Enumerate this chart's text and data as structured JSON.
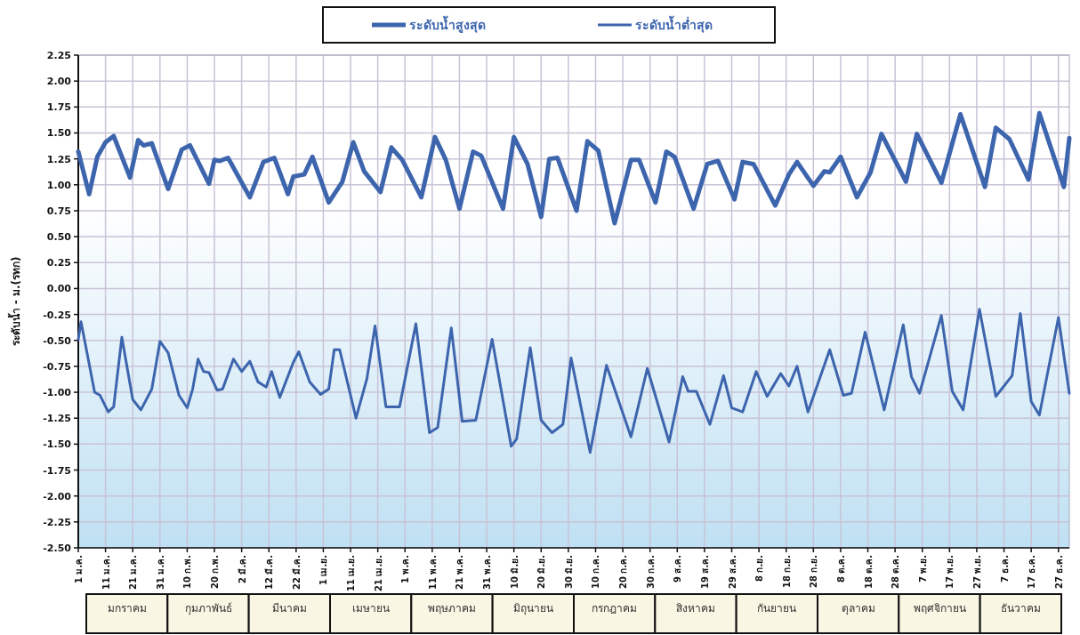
{
  "chart_data": {
    "type": "line",
    "ylabel": "ระดับน้ำ - ม.(รทก)",
    "xlim": [
      "--01-01",
      "--12-31"
    ],
    "ylim": [
      -2.5,
      2.25
    ],
    "yticks": [
      2.25,
      {
        "value": 2,
        "label": "2.00"
      },
      1.75,
      {
        "value": 1.5,
        "label": "1.50"
      },
      1.25,
      {
        "value": 1,
        "label": "1.00"
      },
      0.75,
      {
        "value": 0.5,
        "label": "0.50"
      },
      0.25,
      {
        "value": 0,
        "label": "0.00"
      },
      -0.25,
      {
        "value": -0.5,
        "label": "-0.50"
      },
      -0.75,
      {
        "value": -1,
        "label": "-1.00"
      },
      -1.25,
      {
        "value": -1.5,
        "label": "-1.50"
      },
      -1.75,
      {
        "value": -2,
        "label": "-2.00"
      },
      -2.25,
      {
        "value": -2.5,
        "label": "-2.50"
      }
    ],
    "xticks": [
      {
        "value": "--01-01",
        "label": "1 ม.ค."
      },
      {
        "value": "--01-11",
        "label": "11 ม.ค."
      },
      {
        "value": "--01-21",
        "label": "21 ม.ค."
      },
      {
        "value": "--01-31",
        "label": "31 ม.ค."
      },
      {
        "value": "--02-10",
        "label": "10 ก.พ."
      },
      {
        "value": "--02-20",
        "label": "20 ก.พ."
      },
      {
        "value": "--03-02",
        "label": "2 มี.ค."
      },
      {
        "value": "--03-12",
        "label": "12 มี.ค."
      },
      {
        "value": "--03-22",
        "label": "22 มี.ค."
      },
      {
        "value": "--04-01",
        "label": "1 เม.ย."
      },
      {
        "value": "--04-11",
        "label": "11 เม.ย."
      },
      {
        "value": "--04-21",
        "label": "21 เม.ย."
      },
      {
        "value": "--05-01",
        "label": "1 พ.ค."
      },
      {
        "value": "--05-11",
        "label": "11 พ.ค."
      },
      {
        "value": "--05-21",
        "label": "21 พ.ค."
      },
      {
        "value": "--05-31",
        "label": "31 พ.ค."
      },
      {
        "value": "--06-10",
        "label": "10 มิ.ย."
      },
      {
        "value": "--06-20",
        "label": "20 มิ.ย."
      },
      {
        "value": "--06-30",
        "label": "30 มิ.ย."
      },
      {
        "value": "--07-10",
        "label": "10 ก.ค."
      },
      {
        "value": "--07-20",
        "label": "20 ก.ค."
      },
      {
        "value": "--07-30",
        "label": "30 ก.ค."
      },
      {
        "value": "--08-09",
        "label": "9 ส.ค."
      },
      {
        "value": "--08-19",
        "label": "19 ส.ค."
      },
      {
        "value": "--08-29",
        "label": "29 ส.ค."
      },
      {
        "value": "--09-08",
        "label": "8 ก.ย."
      },
      {
        "value": "--09-18",
        "label": "18 ก.ย."
      },
      {
        "value": "--09-28",
        "label": "28 ก.ย."
      },
      {
        "value": "--10-08",
        "label": "8 ต.ค."
      },
      {
        "value": "--10-18",
        "label": "18 ต.ค."
      },
      {
        "value": "--10-28",
        "label": "28 ต.ค."
      },
      {
        "value": "--11-07",
        "label": "7 พ.ย."
      },
      {
        "value": "--11-17",
        "label": "17 พ.ย."
      },
      {
        "value": "--11-27",
        "label": "27 พ.ย."
      },
      {
        "value": "--12-07",
        "label": "7 ธ.ค."
      },
      {
        "value": "--12-17",
        "label": "17 ธ.ค."
      },
      {
        "value": "--12-27",
        "label": "27 ธ.ค."
      }
    ],
    "grid": true,
    "legend": "top",
    "annotations": [
      "มกราคม",
      "กุมภาพันธ์",
      "มีนาคม",
      "เมษายน",
      "พฤษภาคม",
      "มิถุนายน",
      "กรกฎาคม",
      "สิงหาคม",
      "กันยายน",
      "ตุลาคม",
      "พฤศจิกายน",
      "ธันวาคม"
    ],
    "series": [
      {
        "name": "ระดับน้ำสูงสุด",
        "color": "#3d65ad",
        "x": [
          "--01-01",
          "--01-05",
          "--01-08",
          "--01-11",
          "--01-14",
          "--01-20",
          "--01-23",
          "--01-25",
          "--01-28",
          "--02-03",
          "--02-08",
          "--02-11",
          "--02-18",
          "--02-20",
          "--02-22",
          "--02-25",
          "--03-05",
          "--03-10",
          "--03-14",
          "--03-19",
          "--03-21",
          "--03-25",
          "--03-28",
          "--04-03",
          "--04-08",
          "--04-12",
          "--04-16",
          "--04-22",
          "--04-26",
          "--04-30",
          "--05-07",
          "--05-12",
          "--05-16",
          "--05-21",
          "--05-26",
          "--05-29",
          "--06-06",
          "--06-10",
          "--06-15",
          "--06-20",
          "--06-23",
          "--06-26",
          "--07-03",
          "--07-07",
          "--07-11",
          "--07-17",
          "--07-23",
          "--07-26",
          "--08-01",
          "--08-05",
          "--08-08",
          "--08-15",
          "--08-20",
          "--08-24",
          "--08-30",
          "--09-02",
          "--09-06",
          "--09-14",
          "--09-19",
          "--09-22",
          "--09-28",
          "--10-02",
          "--10-04",
          "--10-08",
          "--10-14",
          "--10-19",
          "--10-23",
          "--11-01",
          "--11-05",
          "--11-14",
          "--11-21",
          "--11-30",
          "--12-04",
          "--12-09",
          "--12-16",
          "--12-20",
          "--12-29",
          "--12-31"
        ],
        "values": [
          1.32,
          0.91,
          1.27,
          1.41,
          1.47,
          1.07,
          1.43,
          1.38,
          1.4,
          0.96,
          1.34,
          1.38,
          1.01,
          1.24,
          1.23,
          1.26,
          0.88,
          1.22,
          1.26,
          0.91,
          1.08,
          1.1,
          1.27,
          0.83,
          1.03,
          1.41,
          1.13,
          0.93,
          1.36,
          1.24,
          0.88,
          1.46,
          1.24,
          0.77,
          1.32,
          1.28,
          0.77,
          1.46,
          1.2,
          0.69,
          1.25,
          1.26,
          0.75,
          1.42,
          1.33,
          0.63,
          1.24,
          1.24,
          0.83,
          1.32,
          1.27,
          0.77,
          1.2,
          1.23,
          0.86,
          1.22,
          1.2,
          0.8,
          1.1,
          1.22,
          0.99,
          1.13,
          1.12,
          1.27,
          0.88,
          1.12,
          1.49,
          1.03,
          1.49,
          1.02,
          1.68,
          0.98,
          1.55,
          1.44,
          1.05,
          1.69,
          0.98,
          1.45
        ]
      },
      {
        "name": "ระดับน้ำต่ำสุด",
        "color": "#3d65ad",
        "x": [
          "--01-01",
          "--01-02",
          "--01-07",
          "--01-09",
          "--01-12",
          "--01-14",
          "--01-17",
          "--01-21",
          "--01-24",
          "--01-28",
          "--01-31",
          "--02-03",
          "--02-07",
          "--02-10",
          "--02-12",
          "--02-14",
          "--02-16",
          "--02-18",
          "--02-21",
          "--02-23",
          "--02-27",
          "--03-02",
          "--03-05",
          "--03-08",
          "--03-11",
          "--03-13",
          "--03-16",
          "--03-21",
          "--03-23",
          "--03-27",
          "--03-31",
          "--04-03",
          "--04-05",
          "--04-07",
          "--04-13",
          "--04-17",
          "--04-20",
          "--04-24",
          "--04-29",
          "--05-05",
          "--05-10",
          "--05-13",
          "--05-18",
          "--05-22",
          "--05-27",
          "--06-02",
          "--06-09",
          "--06-11",
          "--06-16",
          "--06-20",
          "--06-24",
          "--06-28",
          "--07-01",
          "--07-08",
          "--07-14",
          "--07-23",
          "--07-29",
          "--08-06",
          "--08-11",
          "--08-13",
          "--08-16",
          "--08-21",
          "--08-26",
          "--08-29",
          "--09-02",
          "--09-07",
          "--09-11",
          "--09-16",
          "--09-19",
          "--09-22",
          "--09-26",
          "--10-04",
          "--10-09",
          "--10-12",
          "--10-17",
          "--10-24",
          "--10-31",
          "--11-03",
          "--11-06",
          "--11-14",
          "--11-18",
          "--11-22",
          "--11-28",
          "--12-04",
          "--12-10",
          "--12-13",
          "--12-17",
          "--12-20",
          "--12-27",
          "--12-31"
        ],
        "values": [
          -0.49,
          -0.32,
          -1.0,
          -1.03,
          -1.19,
          -1.14,
          -0.47,
          -1.07,
          -1.17,
          -0.97,
          -0.51,
          -0.62,
          -1.03,
          -1.15,
          -0.97,
          -0.68,
          -0.8,
          -0.81,
          -0.98,
          -0.97,
          -0.68,
          -0.8,
          -0.7,
          -0.9,
          -0.95,
          -0.8,
          -1.05,
          -0.71,
          -0.61,
          -0.9,
          -1.02,
          -0.97,
          -0.59,
          -0.59,
          -1.25,
          -0.87,
          -0.36,
          -1.14,
          -1.14,
          -0.34,
          -1.39,
          -1.34,
          -0.38,
          -1.28,
          -1.27,
          -0.49,
          -1.52,
          -1.45,
          -0.57,
          -1.27,
          -1.39,
          -1.31,
          -0.67,
          -1.58,
          -0.74,
          -1.43,
          -0.77,
          -1.48,
          -0.85,
          -0.99,
          -0.99,
          -1.31,
          -0.84,
          -1.15,
          -1.19,
          -0.8,
          -1.04,
          -0.82,
          -0.94,
          -0.75,
          -1.19,
          -0.59,
          -1.03,
          -1.01,
          -0.42,
          -1.17,
          -0.35,
          -0.85,
          -1.01,
          -0.26,
          -0.99,
          -1.17,
          -0.2,
          -1.04,
          -0.84,
          -0.24,
          -1.09,
          -1.22,
          -0.28,
          -1.01
        ]
      }
    ]
  }
}
